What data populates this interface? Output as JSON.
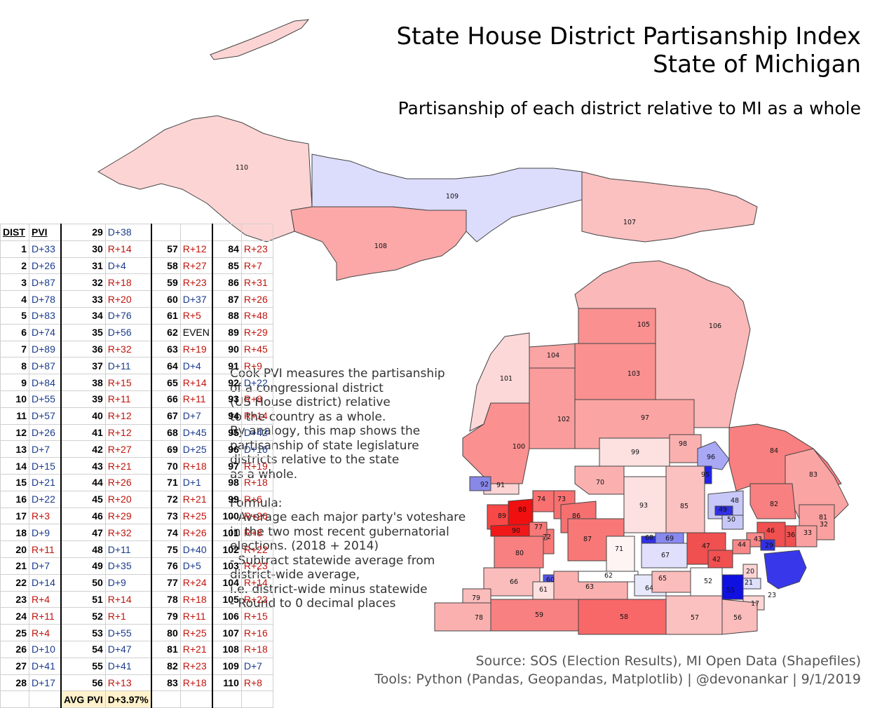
{
  "title_line1": "State House District Partisanship Index",
  "title_line2": "State of Michigan",
  "subtitle": "Partisanship of each district relative to MI as a whole",
  "description": "Cook PVI measures the partisanship\nof a congressional district\n(US House district) relative\nto the country as a whole.\nBy analogy, this map shows the\npartisanship of state legislature\ndistricts relative to the state\nas a whole.\n\nFormula:\n- Average each major party's voteshare\nin the two most recent gubernatorial\nelections. (2018 + 2014)\n- Subtract statewide average from\ndistrict-wide average,\ni.e. district-wide minus statewide\n- Round to 0 decimal places",
  "source_line": "Source: SOS (Election Results), MI Open Data (Shapefiles)",
  "tools_line": "Tools: Python (Pandas, Geopandas, Matplotlib) | @devonankar | 9/1/2019",
  "table": {
    "header_dist": "DIST",
    "header_pvi": "PVI",
    "avg_label": "AVG PVI",
    "avg_value": "D+3.97%",
    "districts": [
      [
        "1",
        "D+33"
      ],
      [
        "2",
        "D+26"
      ],
      [
        "3",
        "D+87"
      ],
      [
        "4",
        "D+78"
      ],
      [
        "5",
        "D+83"
      ],
      [
        "6",
        "D+74"
      ],
      [
        "7",
        "D+89"
      ],
      [
        "8",
        "D+87"
      ],
      [
        "9",
        "D+84"
      ],
      [
        "10",
        "D+55"
      ],
      [
        "11",
        "D+57"
      ],
      [
        "12",
        "D+26"
      ],
      [
        "13",
        "D+7"
      ],
      [
        "14",
        "D+15"
      ],
      [
        "15",
        "D+21"
      ],
      [
        "16",
        "D+22"
      ],
      [
        "17",
        "R+3"
      ],
      [
        "18",
        "D+9"
      ],
      [
        "20",
        "R+11"
      ],
      [
        "21",
        "D+7"
      ],
      [
        "22",
        "D+14"
      ],
      [
        "23",
        "R+4"
      ],
      [
        "24",
        "R+11"
      ],
      [
        "25",
        "R+4"
      ],
      [
        "26",
        "D+10"
      ],
      [
        "27",
        "D+41"
      ],
      [
        "28",
        "D+17"
      ],
      [
        "29",
        "D+38"
      ],
      [
        "30",
        "R+14"
      ],
      [
        "31",
        "D+4"
      ],
      [
        "32",
        "R+18"
      ],
      [
        "33",
        "R+20"
      ],
      [
        "34",
        "D+76"
      ],
      [
        "35",
        "D+56"
      ],
      [
        "36",
        "R+32"
      ],
      [
        "37",
        "D+11"
      ],
      [
        "38",
        "R+15"
      ],
      [
        "39",
        "R+11"
      ],
      [
        "40",
        "R+12"
      ],
      [
        "41",
        "R+12"
      ],
      [
        "42",
        "R+27"
      ],
      [
        "43",
        "R+21"
      ],
      [
        "44",
        "R+26"
      ],
      [
        "45",
        "R+20"
      ],
      [
        "46",
        "R+29"
      ],
      [
        "47",
        "R+32"
      ],
      [
        "48",
        "D+11"
      ],
      [
        "49",
        "D+35"
      ],
      [
        "50",
        "D+9"
      ],
      [
        "51",
        "R+14"
      ],
      [
        "52",
        "R+1"
      ],
      [
        "53",
        "D+55"
      ],
      [
        "54",
        "D+47"
      ],
      [
        "55",
        "D+41"
      ],
      [
        "56",
        "R+13"
      ],
      [
        "57",
        "R+12"
      ],
      [
        "58",
        "R+27"
      ],
      [
        "59",
        "R+23"
      ],
      [
        "60",
        "D+37"
      ],
      [
        "61",
        "R+5"
      ],
      [
        "62",
        "EVEN"
      ],
      [
        "63",
        "R+19"
      ],
      [
        "64",
        "D+4"
      ],
      [
        "65",
        "R+14"
      ],
      [
        "66",
        "R+11"
      ],
      [
        "67",
        "D+7"
      ],
      [
        "68",
        "D+45"
      ],
      [
        "69",
        "D+25"
      ],
      [
        "70",
        "R+18"
      ],
      [
        "71",
        "D+1"
      ],
      [
        "72",
        "R+21"
      ],
      [
        "73",
        "R+25"
      ],
      [
        "74",
        "R+26"
      ],
      [
        "75",
        "D+40"
      ],
      [
        "76",
        "D+5"
      ],
      [
        "77",
        "R+24"
      ],
      [
        "78",
        "R+18"
      ],
      [
        "79",
        "R+11"
      ],
      [
        "80",
        "R+25"
      ],
      [
        "81",
        "R+21"
      ],
      [
        "82",
        "R+23"
      ],
      [
        "83",
        "R+18"
      ],
      [
        "84",
        "R+23"
      ],
      [
        "85",
        "R+7"
      ],
      [
        "86",
        "R+31"
      ],
      [
        "87",
        "R+26"
      ],
      [
        "88",
        "R+48"
      ],
      [
        "89",
        "R+29"
      ],
      [
        "90",
        "R+45"
      ],
      [
        "91",
        "R+9"
      ],
      [
        "92",
        "D+22"
      ],
      [
        "93",
        "R+8"
      ],
      [
        "94",
        "R+14"
      ],
      [
        "95",
        "D+42"
      ],
      [
        "96",
        "D+16"
      ],
      [
        "97",
        "R+19"
      ],
      [
        "98",
        "R+18"
      ],
      [
        "99",
        "R+6"
      ],
      [
        "100",
        "R+26"
      ],
      [
        "101",
        "R+8"
      ],
      [
        "102",
        "R+22"
      ],
      [
        "103",
        "R+23"
      ],
      [
        "104",
        "R+14"
      ],
      [
        "105",
        "R+23"
      ],
      [
        "106",
        "R+15"
      ],
      [
        "107",
        "R+16"
      ],
      [
        "108",
        "R+18"
      ],
      [
        "109",
        "D+7"
      ],
      [
        "110",
        "R+8"
      ]
    ]
  },
  "colors": {
    "dem_text": "#1a3b8c",
    "rep_text": "#c0140c",
    "dem_strong": "#1010e0",
    "rep_strong": "#f01818",
    "neutral": "#ffffff",
    "avg_highlight": "#fff2cc"
  }
}
